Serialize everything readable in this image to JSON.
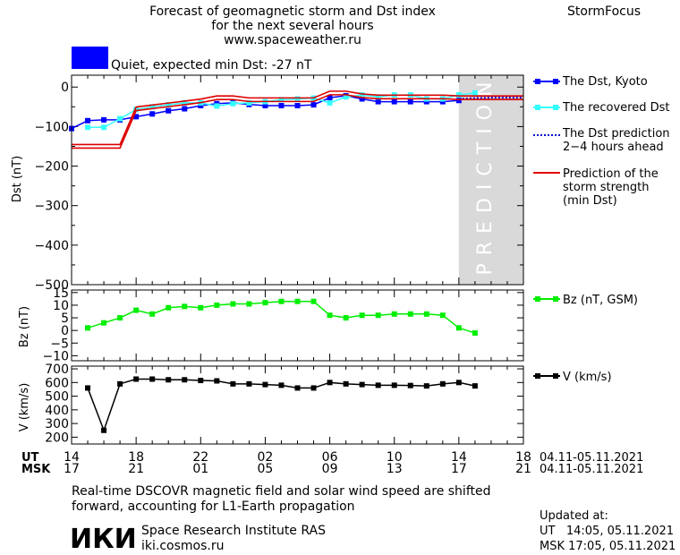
{
  "header": {
    "title_lines": [
      "Forecast of geomagnetic storm and Dst index",
      "for the next several hours",
      "www.spaceweather.ru"
    ],
    "brand": "StormFocus",
    "status_text": "Quiet, expected min Dst: -27 nT",
    "status_color": "#0000ff"
  },
  "colors": {
    "dst_kyoto": "#0000ff",
    "dst_recovered": "#33ffff",
    "dst_prediction": "#0000cc",
    "storm_strength": "#dd0000",
    "bz": "#00ee00",
    "v": "#000000",
    "prediction_band": "#d9d9d9",
    "prediction_text": "#ffffff"
  },
  "prediction_label": "PREDICTION",
  "time_axis": {
    "ut_label": "UT",
    "msk_label": "MSK",
    "ut_ticks": [
      "14",
      "18",
      "22",
      "02",
      "06",
      "10",
      "14",
      "18"
    ],
    "msk_ticks": [
      "17",
      "21",
      "01",
      "05",
      "09",
      "13",
      "17",
      "21"
    ],
    "ut_range": "04.11-05.11.2021",
    "msk_range": "04.11-05.11.2021"
  },
  "chart_data": [
    {
      "type": "line",
      "ylabel": "Dst (nT)",
      "xlim": [
        14,
        42
      ],
      "ylim": [
        -500,
        30
      ],
      "yticks": [
        "0",
        "-100",
        "-200",
        "-300",
        "-400",
        "-500"
      ],
      "prediction_region": [
        38,
        42
      ],
      "series": [
        {
          "name": "The Dst, Kyoto",
          "x": [
            14,
            15,
            16,
            17,
            18,
            19,
            20,
            21,
            22,
            23,
            24,
            25,
            26,
            27,
            28,
            29,
            30,
            31,
            32,
            33,
            34,
            35,
            36,
            37,
            38
          ],
          "values": [
            -105,
            -85,
            -83,
            -83,
            -75,
            -68,
            -60,
            -55,
            -47,
            -42,
            -40,
            -44,
            -47,
            -47,
            -47,
            -45,
            -27,
            -22,
            -30,
            -37,
            -37,
            -37,
            -37,
            -37,
            -34
          ]
        },
        {
          "name": "The recovered Dst",
          "x": [
            15,
            16,
            17,
            18,
            19,
            20,
            21,
            22,
            23,
            24,
            25,
            26,
            27,
            28,
            29,
            30,
            31,
            32,
            33,
            34,
            35,
            36,
            37,
            38,
            39
          ],
          "values": [
            -102,
            -102,
            -80,
            -57,
            -50,
            -45,
            -40,
            -40,
            -48,
            -42,
            -40,
            -37,
            -32,
            -30,
            -28,
            -40,
            -25,
            -20,
            -25,
            -20,
            -20,
            -30,
            -30,
            -20,
            -15
          ]
        },
        {
          "name": "The Dst prediction 2-4 hours ahead",
          "x": [
            38,
            39,
            40,
            41,
            42
          ],
          "values": [
            -30,
            -28,
            -27,
            -27,
            -27
          ]
        },
        {
          "name": "Prediction of the storm strength (min Dst)",
          "x": [
            14,
            17,
            18,
            19,
            20,
            21,
            22,
            23,
            24,
            25,
            26,
            27,
            28,
            29,
            30,
            31,
            32,
            33,
            34,
            35,
            36,
            37,
            38,
            39,
            40,
            41,
            42
          ],
          "values": [
            -150,
            -150,
            -55,
            -50,
            -45,
            -40,
            -35,
            -27,
            -27,
            -32,
            -32,
            -32,
            -32,
            -32,
            -15,
            -15,
            -22,
            -25,
            -25,
            -25,
            -25,
            -25,
            -27,
            -27,
            -27,
            -27,
            -27
          ]
        }
      ]
    },
    {
      "type": "line",
      "ylabel": "Bz (nT)",
      "xlim": [
        14,
        42
      ],
      "ylim": [
        -12,
        16
      ],
      "yticks": [
        "15",
        "10",
        "5",
        "0",
        "-5",
        "-10"
      ],
      "series": [
        {
          "name": "Bz (nT, GSM)",
          "x": [
            15,
            16,
            17,
            18,
            19,
            20,
            21,
            22,
            23,
            24,
            25,
            26,
            27,
            28,
            29,
            30,
            31,
            32,
            33,
            34,
            35,
            36,
            37,
            38,
            39
          ],
          "values": [
            1,
            3,
            5,
            8,
            6.5,
            9,
            9.5,
            9,
            10,
            10.5,
            10.5,
            11,
            11.5,
            11.5,
            11.5,
            6,
            5,
            6,
            6,
            6.5,
            6.5,
            6.5,
            6,
            1,
            -1
          ]
        }
      ]
    },
    {
      "type": "line",
      "ylabel": "V (km/s)",
      "xlim": [
        14,
        42
      ],
      "ylim": [
        150,
        720
      ],
      "yticks": [
        "700",
        "600",
        "500",
        "400",
        "300",
        "200"
      ],
      "series": [
        {
          "name": "V (km/s)",
          "x": [
            15,
            16,
            17,
            18,
            19,
            20,
            21,
            22,
            23,
            24,
            25,
            26,
            27,
            28,
            29,
            30,
            31,
            32,
            33,
            34,
            35,
            36,
            37,
            38,
            39
          ],
          "values": [
            560,
            250,
            590,
            625,
            625,
            620,
            620,
            615,
            612,
            590,
            590,
            585,
            580,
            560,
            560,
            600,
            590,
            585,
            580,
            580,
            578,
            575,
            590,
            600,
            575
          ]
        }
      ]
    }
  ],
  "footer": {
    "note_lines": [
      "Real-time DSCOVR magnetic field and solar wind speed are shifted",
      "forward, accounting for L1-Earth propagation"
    ],
    "logo_text": "ИКИ",
    "institute": "Space Research Institute RAS",
    "site": "iki.cosmos.ru",
    "updated_label": "Updated at:",
    "updated_ut": "UT   14:05, 05.11.2021",
    "updated_msk": "MSK 17:05, 05.11.2021"
  }
}
